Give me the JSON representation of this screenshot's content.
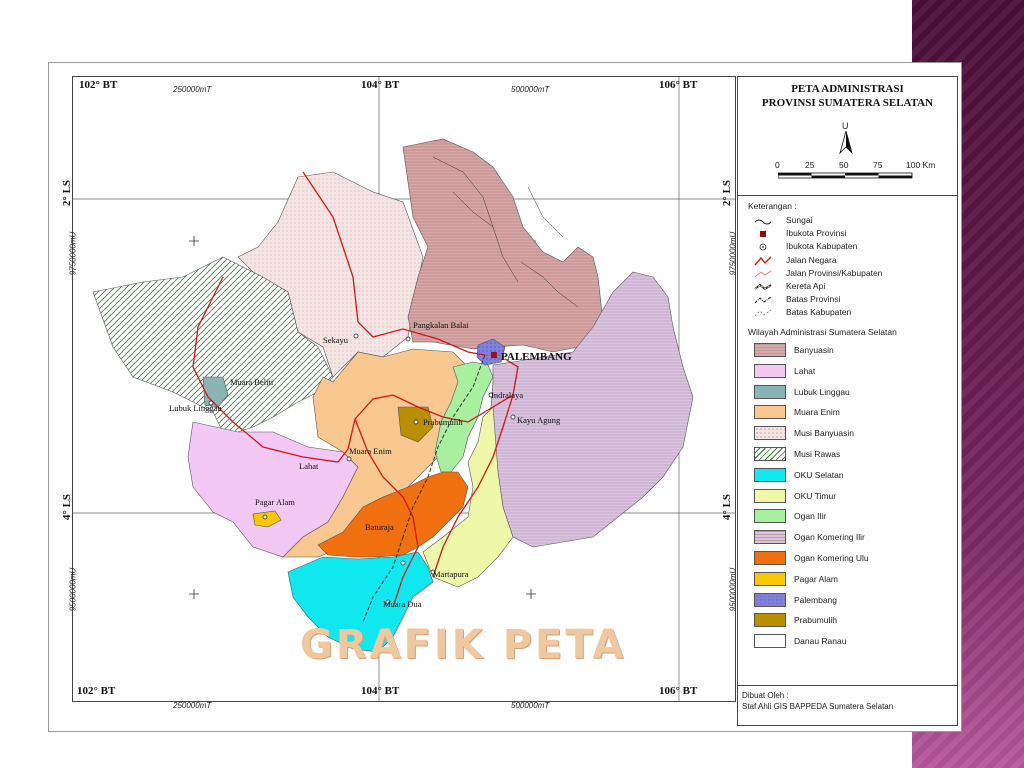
{
  "slide": {
    "title": "GRAFIK PETA"
  },
  "map": {
    "top_labels": [
      "102° BT",
      "104° BT",
      "106° BT"
    ],
    "bottom_labels": [
      "102° BT",
      "104° BT",
      "106° BT"
    ],
    "top_utm": [
      "250000mT",
      "500000mT"
    ],
    "bottom_utm": [
      "250000mT",
      "500000mT"
    ],
    "left_lat": [
      "2° LS",
      "4° LS"
    ],
    "right_lat": [
      "2° LS",
      "4° LS"
    ],
    "left_utm": [
      "9750000mU",
      "9500000mU"
    ],
    "right_utm": [
      "9750000mU",
      "9500000mU"
    ],
    "places": {
      "pangkalan_balai": "Pangkalan Balai",
      "sekayu": "Sekayu",
      "palembang": "PALEMBANG",
      "muara_beliti": "Muara Beliti",
      "lubuk_linggau": "Lubuk Linggau",
      "indralaya": "Indralaya",
      "kayu_agung": "Kayu Agung",
      "prabumulih": "Prabumulih",
      "muara_enim": "Muara Enim",
      "lahat": "Lahat",
      "pagar_alam": "Pagar Alam",
      "baturaja": "Baturaja",
      "martapura": "Martapura",
      "muara_dua": "Muara Dua"
    }
  },
  "legend": {
    "title_line1": "PETA ADMINISTRASI",
    "title_line2": "PROVINSI SUMATERA SELATAN",
    "north": "U",
    "scale_ticks": [
      "0",
      "25",
      "50",
      "75",
      "100 Km"
    ],
    "keterangan": "Keterangan :",
    "symbols": [
      {
        "label": "Sungai",
        "icon": "river-icon"
      },
      {
        "label": "Ibukota Provinsi",
        "icon": "square-icon"
      },
      {
        "label": "Ibukota Kabupaten",
        "icon": "dot-circle-icon"
      },
      {
        "label": "Jalan Negara",
        "icon": "road-icon"
      },
      {
        "label": "Jalan Provinsi/Kabupaten",
        "icon": "road-thin-icon"
      },
      {
        "label": "Kereta Api",
        "icon": "railway-icon"
      },
      {
        "label": "Batas Provinsi",
        "icon": "boundary-icon"
      },
      {
        "label": "Batas Kabupaten",
        "icon": "boundary-thin-icon"
      }
    ],
    "wilayah_title": "Wilayah Administrasi Sumatera Selatan",
    "regions": [
      {
        "label": "Banyuasin",
        "color": "#d8a8a8",
        "hatch": "hlines"
      },
      {
        "label": "Lahat",
        "color": "#f4c8f4",
        "hatch": "none"
      },
      {
        "label": "Lubuk Linggau",
        "color": "#8ab4b4",
        "hatch": "none"
      },
      {
        "label": "Muara Enim",
        "color": "#f8c890",
        "hatch": "none"
      },
      {
        "label": "Musi Banyuasin",
        "color": "#f4e4e4",
        "hatch": "dots"
      },
      {
        "label": "Musi Rawas",
        "color": "#ffffff",
        "hatch": "diag"
      },
      {
        "label": "OKU Selatan",
        "color": "#10e8f0",
        "hatch": "none"
      },
      {
        "label": "OKU Timur",
        "color": "#eef8a8",
        "hatch": "none"
      },
      {
        "label": "Ogan Ilir",
        "color": "#a8f0a0",
        "hatch": "none"
      },
      {
        "label": "Ogan Komering Ilir",
        "color": "#dcc4e0",
        "hatch": "hlines"
      },
      {
        "label": "Ogan Komering Ulu",
        "color": "#f07010",
        "hatch": "none"
      },
      {
        "label": "Pagar Alam",
        "color": "#f8c800",
        "hatch": "none"
      },
      {
        "label": "Palembang",
        "color": "#8080e0",
        "hatch": "dots"
      },
      {
        "label": "Prabumulih",
        "color": "#b89000",
        "hatch": "none"
      },
      {
        "label": "Danau Ranau",
        "color": "#ffffff",
        "hatch": "none"
      }
    ],
    "credit_line1": "Dibuat Oleh :",
    "credit_line2": "Staf Ahli GIS BAPPEDA Sumatera Selatan"
  }
}
